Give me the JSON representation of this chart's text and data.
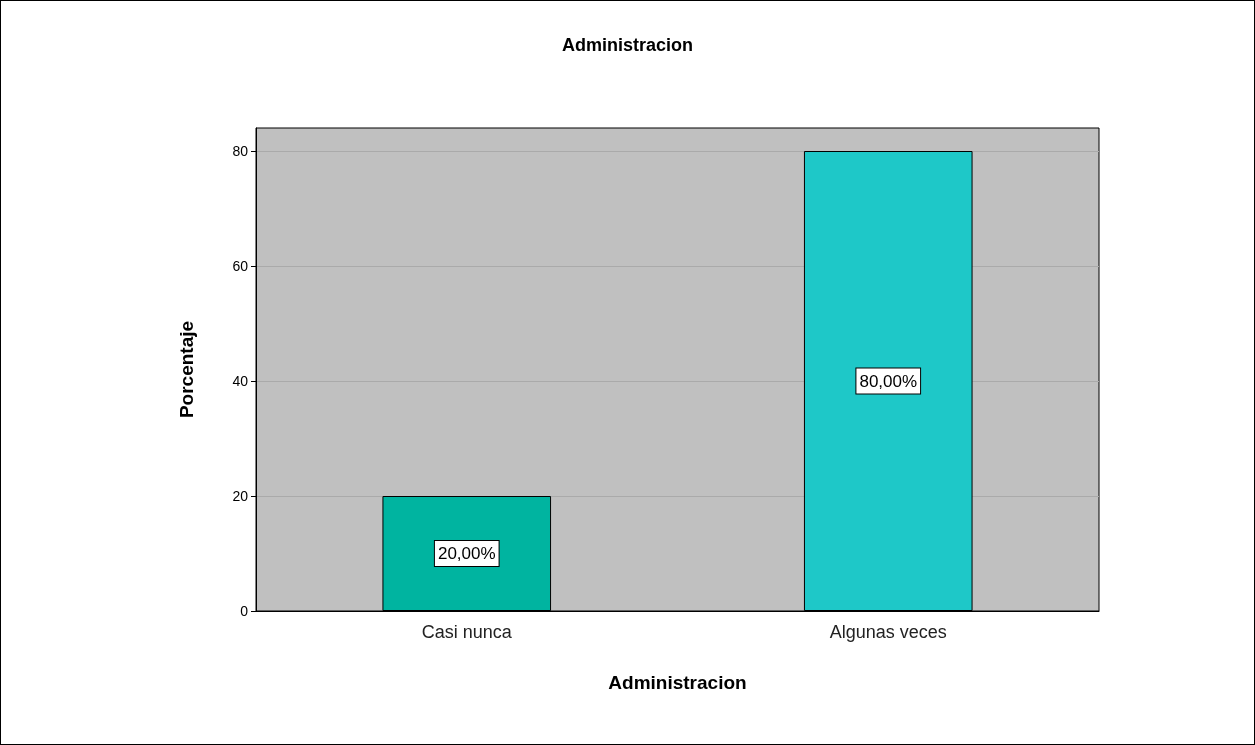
{
  "chart_data": {
    "type": "bar",
    "title": "Administracion",
    "xlabel": "Administracion",
    "ylabel": "Porcentaje",
    "categories": [
      "Casi nunca",
      "Algunas veces"
    ],
    "values": [
      20,
      80
    ],
    "colors": [
      "#00b4a0",
      "#1ec8c8"
    ],
    "value_labels": [
      "20,00%",
      "80,00%"
    ],
    "ylim": [
      0,
      84
    ],
    "yticks": [
      0,
      20,
      40,
      60,
      80
    ],
    "grid": "y"
  }
}
